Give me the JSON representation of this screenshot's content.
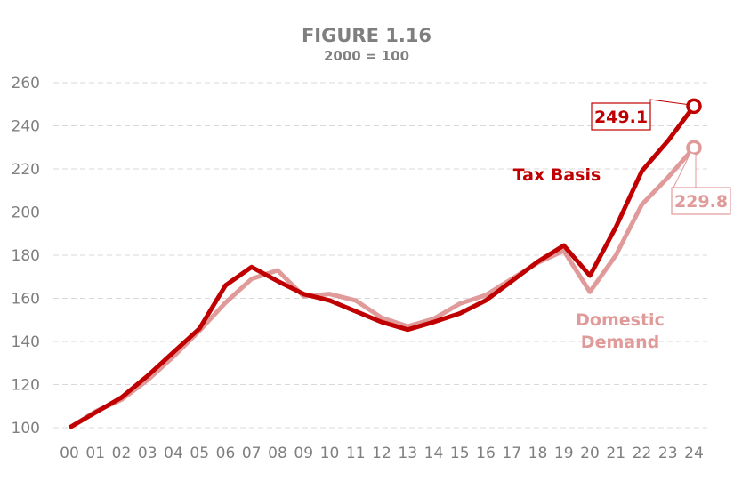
{
  "chart_data": {
    "type": "line",
    "title": "FIGURE 1.16",
    "subtitle": "2000 = 100",
    "xlabel": "",
    "ylabel": "",
    "ylim": [
      100,
      260
    ],
    "yticks": [
      100,
      120,
      140,
      160,
      180,
      200,
      220,
      240,
      260
    ],
    "grid": true,
    "categories": [
      "00",
      "01",
      "02",
      "03",
      "04",
      "05",
      "06",
      "07",
      "08",
      "09",
      "10",
      "11",
      "12",
      "13",
      "14",
      "15",
      "16",
      "17",
      "18",
      "19",
      "20",
      "21",
      "22",
      "23",
      "24"
    ],
    "series": [
      {
        "name": "Tax Basis",
        "color": "#c00000",
        "values": [
          100,
          107,
          114,
          124,
          135,
          146,
          166,
          174.5,
          168,
          162,
          159,
          154,
          149,
          145.5,
          149,
          153,
          159,
          168,
          177,
          184.5,
          170.5,
          193,
          219,
          233,
          249.1
        ],
        "end_label": "249.1"
      },
      {
        "name": "Domestic Demand",
        "color": "#e09a9a",
        "values": [
          100,
          107.5,
          113,
          122,
          133,
          145,
          158,
          169,
          173,
          161,
          162,
          159,
          151,
          147,
          150.5,
          157.5,
          161.5,
          169,
          176.5,
          182,
          163,
          180,
          203.5,
          216,
          229.8
        ],
        "end_label": "229.8"
      }
    ],
    "legend_labels": {
      "tax": "Tax Basis",
      "dd_line1": "Domestic",
      "dd_line2": "Demand"
    }
  }
}
